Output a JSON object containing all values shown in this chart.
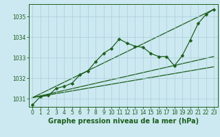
{
  "title": "Graphe pression niveau de la mer (hPa)",
  "background_color": "#cce8f0",
  "grid_color": "#aaccd8",
  "line_color": "#1a5e1a",
  "xlim": [
    -0.5,
    23.5
  ],
  "ylim": [
    1030.6,
    1035.6
  ],
  "yticks": [
    1031,
    1032,
    1033,
    1034,
    1035
  ],
  "xticks": [
    0,
    1,
    2,
    3,
    4,
    5,
    6,
    7,
    8,
    9,
    10,
    11,
    12,
    13,
    14,
    15,
    16,
    17,
    18,
    19,
    20,
    21,
    22,
    23
  ],
  "series_main": {
    "x": [
      0,
      1,
      2,
      3,
      4,
      5,
      6,
      7,
      8,
      9,
      10,
      11,
      12,
      13,
      14,
      15,
      16,
      17,
      18,
      19,
      20,
      21,
      22,
      23
    ],
    "y": [
      1030.7,
      1031.1,
      1031.15,
      1031.5,
      1031.6,
      1031.75,
      1032.15,
      1032.35,
      1032.8,
      1033.2,
      1033.45,
      1033.9,
      1033.7,
      1033.55,
      1033.5,
      1033.2,
      1033.05,
      1033.05,
      1032.6,
      1033.1,
      1033.85,
      1034.65,
      1035.1,
      1035.35
    ]
  },
  "straight_lines": [
    {
      "x0": 0.0,
      "y0": 1031.05,
      "x1": 23,
      "y1": 1032.55
    },
    {
      "x0": 0.0,
      "y0": 1031.05,
      "x1": 23,
      "y1": 1033.05
    },
    {
      "x0": 0.0,
      "y0": 1031.05,
      "x1": 23,
      "y1": 1035.35
    }
  ],
  "xlabel_fontsize": 7,
  "tick_fontsize": 5.5,
  "ylabel_color": "#1a5e1a"
}
